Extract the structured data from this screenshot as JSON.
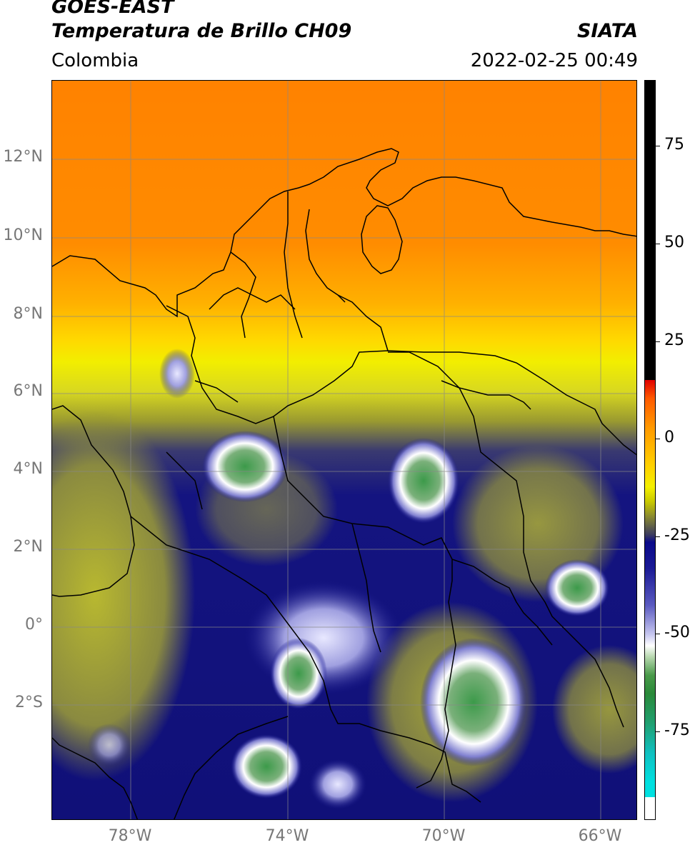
{
  "header": {
    "title_line1": "GOES-EAST",
    "title_line2": "Temperatura de Brillo CH09",
    "region": "Colombia",
    "organization": "SIATA",
    "datetime": "2022-02-25 00:49"
  },
  "map": {
    "lat_labels": [
      "12°N",
      "10°N",
      "8°N",
      "6°N",
      "4°N",
      "2°N",
      "0°",
      "2°S"
    ],
    "lon_labels": [
      "78°W",
      "74°W",
      "70°W",
      "66°W"
    ],
    "gridlines": true,
    "colors": {
      "warm": "#ff8c00",
      "mid": "#f0f000",
      "cold": "#0a0a8a",
      "coldest": "#2a8a3a",
      "border": "#000000"
    }
  },
  "colorbar": {
    "tick_labels": [
      "75",
      "50",
      "25",
      "0",
      "-25",
      "-50",
      "-75"
    ],
    "position": "right"
  }
}
